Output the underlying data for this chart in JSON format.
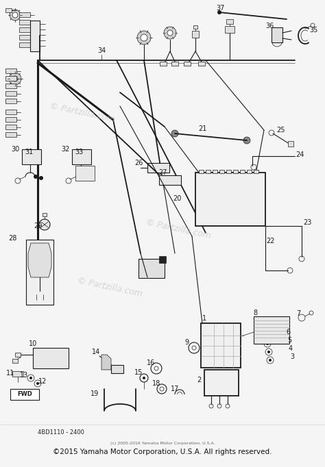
{
  "background_color": "#f5f5f5",
  "fig_width": 4.74,
  "fig_height": 6.82,
  "dpi": 100,
  "lc": "#1a1a1a",
  "watermark_text": "© Partzilla.com",
  "watermark_color": "#bbbbbb",
  "copyright_text": "©2015 Yamaha Motor Corporation, U.S.A. All rights reserved.",
  "copyright_small": "(c) 2005-2016 Yamaha Motor Corporation, U.S.A.",
  "part_number": "4BD1110 - 2400"
}
